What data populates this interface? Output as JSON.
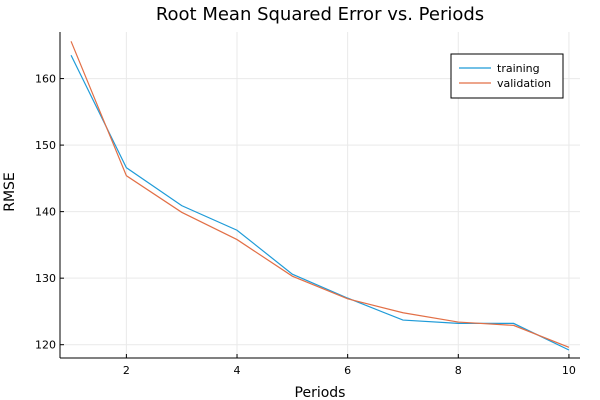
{
  "chart_data": {
    "type": "line",
    "title": "Root Mean Squared Error vs. Periods",
    "xlabel": "Periods",
    "ylabel": "RMSE",
    "xlim": [
      0.8,
      10.2
    ],
    "ylim": [
      118,
      167
    ],
    "xticks": [
      2,
      4,
      6,
      8,
      10
    ],
    "yticks": [
      120,
      130,
      140,
      150,
      160
    ],
    "grid": true,
    "legend_position": "top-right",
    "x": [
      1,
      2,
      3,
      4,
      5,
      6,
      7,
      8,
      9,
      10
    ],
    "series": [
      {
        "name": "training",
        "color": "#1f9bd8",
        "values": [
          163.5,
          146.6,
          140.9,
          137.2,
          130.6,
          127.0,
          123.7,
          123.2,
          123.2,
          119.2
        ]
      },
      {
        "name": "validation",
        "color": "#e26f46",
        "values": [
          165.6,
          145.4,
          139.9,
          135.8,
          130.3,
          126.9,
          124.8,
          123.4,
          122.9,
          119.6
        ]
      }
    ]
  }
}
